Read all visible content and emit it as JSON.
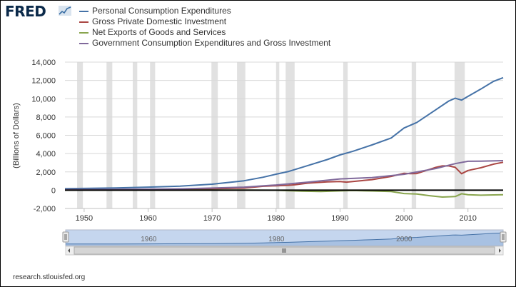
{
  "brand": {
    "name": "FRED"
  },
  "chart_data": {
    "type": "line",
    "ylabel": "(Billions of Dollars)",
    "xlim": [
      1947,
      2015.5
    ],
    "ylim": [
      -2000,
      14000
    ],
    "y_ticks": [
      "14,000",
      "12,000",
      "10,000",
      "8,000",
      "6,000",
      "4,000",
      "2,000",
      "0",
      "-2,000"
    ],
    "x_ticks": [
      "1950",
      "1960",
      "1970",
      "1980",
      "1990",
      "2000",
      "2010"
    ],
    "navigator_labels": [
      "1960",
      "1980",
      "2000"
    ],
    "grid": "horizontal",
    "legend_position": "top",
    "recessions": [
      [
        1948.9,
        1949.8
      ],
      [
        1953.5,
        1954.4
      ],
      [
        1957.6,
        1958.3
      ],
      [
        1960.3,
        1961.1
      ],
      [
        1969.9,
        1970.9
      ],
      [
        1973.9,
        1975.2
      ],
      [
        1980.0,
        1980.5
      ],
      [
        1981.5,
        1982.9
      ],
      [
        1990.5,
        1991.2
      ],
      [
        2001.2,
        2001.9
      ],
      [
        2007.9,
        2009.5
      ]
    ],
    "series": [
      {
        "name": "Personal Consumption Expenditures",
        "color": "#4572a7",
        "x": [
          1947,
          1950,
          1955,
          1960,
          1965,
          1970,
          1975,
          1978,
          1980,
          1982,
          1985,
          1988,
          1990,
          1992,
          1995,
          1998,
          2000,
          2002,
          2005,
          2007,
          2008,
          2009,
          2010,
          2012,
          2014,
          2015.5
        ],
        "values": [
          160,
          190,
          250,
          330,
          440,
          650,
          1030,
          1420,
          1750,
          2050,
          2700,
          3350,
          3850,
          4250,
          4950,
          5700,
          6800,
          7400,
          8800,
          9750,
          10050,
          9850,
          10250,
          11050,
          11900,
          12300
        ]
      },
      {
        "name": "Gross Private Domestic Investment",
        "color": "#aa4643",
        "x": [
          1947,
          1950,
          1955,
          1960,
          1965,
          1970,
          1975,
          1978,
          1980,
          1982,
          1983,
          1985,
          1988,
          1990,
          1991,
          1993,
          1995,
          1998,
          2000,
          2001,
          2002,
          2005,
          2006,
          2007,
          2008,
          2009,
          2010,
          2012,
          2014,
          2015.5
        ],
        "values": [
          35,
          55,
          70,
          80,
          110,
          150,
          230,
          430,
          480,
          540,
          600,
          770,
          900,
          950,
          880,
          1010,
          1150,
          1500,
          1850,
          1800,
          1820,
          2500,
          2650,
          2650,
          2500,
          1800,
          2150,
          2450,
          2850,
          3050
        ]
      },
      {
        "name": "Net Exports of Goods and Services",
        "color": "#89a54e",
        "x": [
          1947,
          1960,
          1970,
          1975,
          1980,
          1984,
          1987,
          1990,
          1992,
          1995,
          1998,
          2000,
          2002,
          2004,
          2006,
          2008,
          2009,
          2010,
          2012,
          2014,
          2015.5
        ],
        "values": [
          10,
          5,
          5,
          10,
          -10,
          -100,
          -150,
          -80,
          -40,
          -90,
          -150,
          -370,
          -420,
          -600,
          -750,
          -700,
          -390,
          -500,
          -550,
          -520,
          -500
        ]
      },
      {
        "name": "Government Consumption Expenditures and Gross Investment",
        "color": "#80699b",
        "x": [
          1947,
          1955,
          1960,
          1965,
          1970,
          1975,
          1980,
          1985,
          1990,
          1995,
          2000,
          2005,
          2008,
          2010,
          2012,
          2015.5
        ],
        "values": [
          40,
          90,
          110,
          150,
          230,
          330,
          570,
          880,
          1230,
          1380,
          1740,
          2370,
          2900,
          3160,
          3170,
          3230
        ]
      }
    ]
  },
  "footer": {
    "source": "research.stlouisfed.org"
  },
  "colors": {
    "recession": "#e1e1e1",
    "zero_line": "#000000",
    "navigator_fill": "#c5d6ee",
    "navigator_line": "#4572a7"
  }
}
